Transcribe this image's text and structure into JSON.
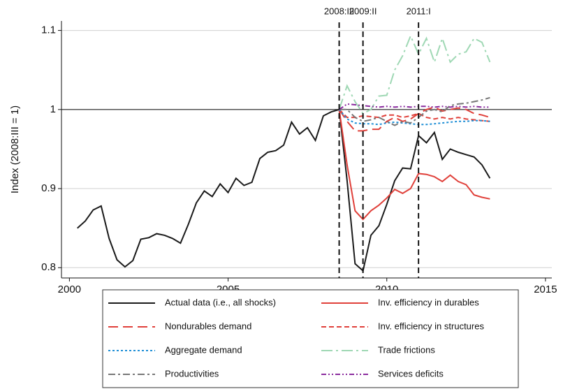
{
  "chart_data": {
    "type": "line",
    "ylabel": "Index (2008:III = 1)",
    "xlim": [
      1999.75,
      2015.2
    ],
    "ylim": [
      0.787,
      1.112
    ],
    "xticks": [
      2000,
      2005,
      2010,
      2015
    ],
    "yticks": [
      0.8,
      0.9,
      1,
      1.1
    ],
    "grid": true,
    "reference_line": 1,
    "vlines": [
      {
        "value": 2008.5,
        "label": "2008:III"
      },
      {
        "value": 2009.25,
        "label": "2009:II"
      },
      {
        "value": 2011,
        "label": "2011:I"
      }
    ],
    "legend": "bottom",
    "series": [
      {
        "name": "Actual data (i.e., all shocks)",
        "color": "#1a1a1a",
        "dash": "none",
        "x": [
          2000.25,
          2000.5,
          2000.75,
          2001,
          2001.25,
          2001.5,
          2001.75,
          2002,
          2002.25,
          2002.5,
          2002.75,
          2003,
          2003.25,
          2003.5,
          2003.75,
          2004,
          2004.25,
          2004.5,
          2004.75,
          2005,
          2005.25,
          2005.5,
          2005.75,
          2006,
          2006.25,
          2006.5,
          2006.75,
          2007,
          2007.25,
          2007.5,
          2007.75,
          2008,
          2008.25,
          2008.5,
          2008.75,
          2009,
          2009.25,
          2009.5,
          2009.75,
          2010,
          2010.25,
          2010.5,
          2010.75,
          2011,
          2011.25,
          2011.5,
          2011.75,
          2012,
          2012.25,
          2012.5,
          2012.75,
          2013,
          2013.25
        ],
        "values": [
          0.85,
          0.859,
          0.873,
          0.878,
          0.837,
          0.81,
          0.801,
          0.809,
          0.836,
          0.838,
          0.843,
          0.841,
          0.837,
          0.831,
          0.855,
          0.882,
          0.897,
          0.89,
          0.906,
          0.895,
          0.913,
          0.904,
          0.908,
          0.938,
          0.946,
          0.948,
          0.955,
          0.984,
          0.969,
          0.977,
          0.961,
          0.992,
          0.997,
          1.0,
          0.91,
          0.805,
          0.796,
          0.841,
          0.853,
          0.88,
          0.91,
          0.926,
          0.925,
          0.967,
          0.958,
          0.971,
          0.937,
          0.95,
          0.946,
          0.943,
          0.94,
          0.93,
          0.913
        ]
      },
      {
        "name": "Inv. efficiency in durables",
        "color": "#e0403a",
        "dash": "none",
        "x": [
          2008.5,
          2008.75,
          2009,
          2009.25,
          2009.5,
          2009.75,
          2010,
          2010.25,
          2010.5,
          2010.75,
          2011,
          2011.25,
          2011.5,
          2011.75,
          2012,
          2012.25,
          2012.5,
          2012.75,
          2013,
          2013.25
        ],
        "values": [
          1.0,
          0.93,
          0.872,
          0.861,
          0.872,
          0.879,
          0.888,
          0.899,
          0.894,
          0.9,
          0.919,
          0.918,
          0.915,
          0.909,
          0.917,
          0.909,
          0.905,
          0.892,
          0.889,
          0.887
        ]
      },
      {
        "name": "Nondurables demand",
        "color": "#e0403a",
        "dash": "14,7",
        "x": [
          2008.5,
          2008.75,
          2009,
          2009.25,
          2009.5,
          2009.75,
          2010,
          2010.25,
          2010.5,
          2010.75,
          2011,
          2011.25,
          2011.5,
          2011.75,
          2012,
          2012.25,
          2012.5,
          2012.75,
          2013,
          2013.25
        ],
        "values": [
          1.0,
          0.985,
          0.973,
          0.973,
          0.975,
          0.975,
          0.985,
          0.99,
          0.985,
          0.988,
          0.995,
          1.0,
          1.003,
          0.998,
          1.0,
          1.002,
          1.0,
          0.995,
          0.993,
          0.99
        ]
      },
      {
        "name": "Inv. efficiency in structures",
        "color": "#e0403a",
        "dash": "7,4",
        "x": [
          2008.5,
          2008.75,
          2009,
          2009.25,
          2009.5,
          2009.75,
          2010,
          2010.25,
          2010.5,
          2010.75,
          2011,
          2011.25,
          2011.5,
          2011.75,
          2012,
          2012.25,
          2012.5,
          2012.75,
          2013,
          2013.25
        ],
        "values": [
          1.0,
          0.99,
          0.99,
          0.992,
          0.991,
          0.99,
          0.993,
          0.993,
          0.99,
          0.992,
          0.995,
          0.99,
          0.988,
          0.99,
          0.988,
          0.99,
          0.988,
          0.987,
          0.986,
          0.985
        ]
      },
      {
        "name": "Aggregate demand",
        "color": "#1f8fd6",
        "dash": "3,3",
        "x": [
          2008.5,
          2008.75,
          2009,
          2009.25,
          2009.5,
          2009.75,
          2010,
          2010.25,
          2010.5,
          2010.75,
          2011,
          2011.25,
          2011.5,
          2011.75,
          2012,
          2012.25,
          2012.5,
          2012.75,
          2013,
          2013.25
        ],
        "values": [
          1.0,
          0.988,
          0.983,
          0.982,
          0.982,
          0.981,
          0.983,
          0.984,
          0.983,
          0.982,
          0.981,
          0.981,
          0.982,
          0.983,
          0.984,
          0.985,
          0.985,
          0.986,
          0.986,
          0.985
        ]
      },
      {
        "name": "Trade frictions",
        "color": "#9fd8b4",
        "dash": "16,5,3,5",
        "x": [
          2008.5,
          2008.75,
          2009,
          2009.25,
          2009.5,
          2009.75,
          2010,
          2010.25,
          2010.5,
          2010.75,
          2011,
          2011.25,
          2011.5,
          2011.75,
          2012,
          2012.25,
          2012.5,
          2012.75,
          2013,
          2013.25
        ],
        "values": [
          1.0,
          1.03,
          1.01,
          0.995,
          1.0,
          1.017,
          1.018,
          1.05,
          1.068,
          1.093,
          1.07,
          1.09,
          1.06,
          1.09,
          1.06,
          1.07,
          1.073,
          1.09,
          1.085,
          1.06
        ]
      },
      {
        "name": "Productivities",
        "color": "#777777",
        "dash": "10,4,3,4",
        "x": [
          2008.5,
          2008.75,
          2009,
          2009.25,
          2009.5,
          2009.75,
          2010,
          2010.25,
          2010.5,
          2010.75,
          2011,
          2011.25,
          2011.5,
          2011.75,
          2012,
          2012.25,
          2012.5,
          2012.75,
          2013,
          2013.25
        ],
        "values": [
          1.0,
          1.0,
          0.99,
          0.985,
          0.987,
          0.99,
          0.985,
          0.98,
          0.985,
          0.983,
          0.99,
          0.998,
          1.0,
          0.997,
          1.005,
          1.007,
          1.008,
          1.01,
          1.012,
          1.015
        ]
      },
      {
        "name": "Services deficits",
        "color": "#8a2b9e",
        "dash": "7,3,2,3,2,3",
        "x": [
          2008.5,
          2008.75,
          2009,
          2009.25,
          2009.5,
          2009.75,
          2010,
          2010.25,
          2010.5,
          2010.75,
          2011,
          2011.25,
          2011.5,
          2011.75,
          2012,
          2012.25,
          2012.5,
          2012.75,
          2013,
          2013.25
        ],
        "values": [
          1.0,
          1.007,
          1.006,
          1.005,
          1.004,
          1.003,
          1.004,
          1.003,
          1.004,
          1.003,
          1.004,
          1.004,
          1.003,
          1.004,
          1.003,
          1.004,
          1.003,
          1.004,
          1.003,
          1.003
        ]
      }
    ]
  }
}
